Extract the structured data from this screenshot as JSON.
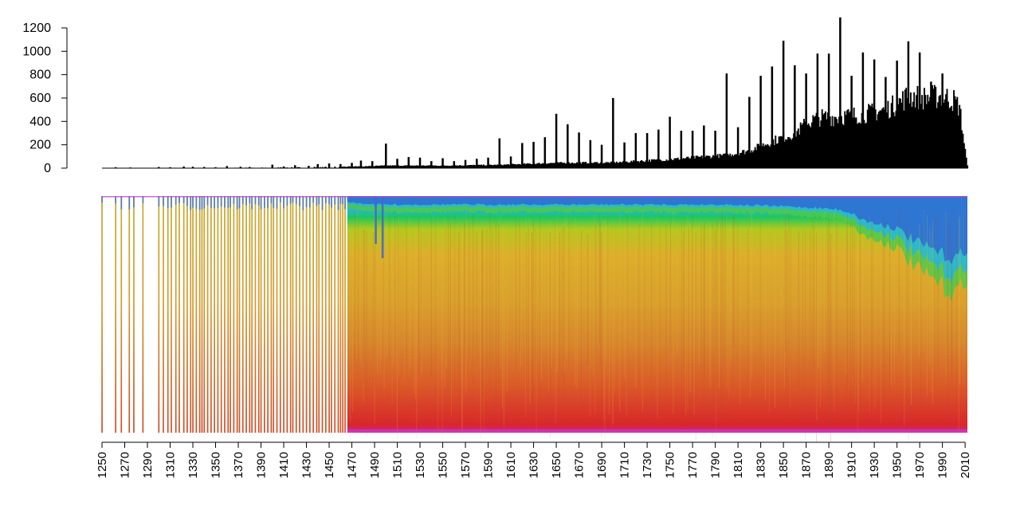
{
  "chart_data": [
    {
      "type": "bar",
      "title": "",
      "xlabel": "",
      "ylabel": "",
      "xlim": [
        1250,
        2012
      ],
      "ylim": [
        0,
        1200
      ],
      "y_ticks": [
        0,
        200,
        400,
        600,
        800,
        1000,
        1200
      ],
      "y_tick_labels": [
        "0",
        "200",
        "400",
        "600",
        "800",
        "1000",
        "1200"
      ],
      "grid": false,
      "bar_color": "#000000",
      "baseline": [
        [
          1250,
          0
        ],
        [
          1300,
          1
        ],
        [
          1400,
          5
        ],
        [
          1450,
          12
        ],
        [
          1480,
          15
        ],
        [
          1500,
          22
        ],
        [
          1550,
          22
        ],
        [
          1600,
          28
        ],
        [
          1650,
          45
        ],
        [
          1700,
          48
        ],
        [
          1750,
          75
        ],
        [
          1800,
          110
        ],
        [
          1820,
          150
        ],
        [
          1840,
          230
        ],
        [
          1860,
          300
        ],
        [
          1870,
          380
        ],
        [
          1880,
          430
        ],
        [
          1900,
          440
        ],
        [
          1920,
          460
        ],
        [
          1940,
          500
        ],
        [
          1950,
          550
        ],
        [
          1960,
          620
        ],
        [
          1975,
          600
        ],
        [
          1990,
          620
        ],
        [
          2000,
          580
        ],
        [
          2005,
          520
        ],
        [
          2008,
          300
        ],
        [
          2010,
          150
        ],
        [
          2012,
          20
        ]
      ],
      "spikes": [
        [
          1262,
          8
        ],
        [
          1275,
          6
        ],
        [
          1300,
          10
        ],
        [
          1310,
          8
        ],
        [
          1322,
          14
        ],
        [
          1330,
          12
        ],
        [
          1340,
          10
        ],
        [
          1350,
          8
        ],
        [
          1360,
          18
        ],
        [
          1372,
          12
        ],
        [
          1380,
          10
        ],
        [
          1400,
          30
        ],
        [
          1410,
          15
        ],
        [
          1420,
          25
        ],
        [
          1432,
          20
        ],
        [
          1440,
          35
        ],
        [
          1450,
          40
        ],
        [
          1460,
          35
        ],
        [
          1470,
          45
        ],
        [
          1478,
          65
        ],
        [
          1488,
          60
        ],
        [
          1500,
          210
        ],
        [
          1510,
          80
        ],
        [
          1520,
          95
        ],
        [
          1530,
          90
        ],
        [
          1540,
          60
        ],
        [
          1550,
          85
        ],
        [
          1560,
          60
        ],
        [
          1570,
          70
        ],
        [
          1580,
          80
        ],
        [
          1590,
          90
        ],
        [
          1600,
          255
        ],
        [
          1610,
          100
        ],
        [
          1620,
          215
        ],
        [
          1630,
          225
        ],
        [
          1640,
          265
        ],
        [
          1650,
          465
        ],
        [
          1660,
          375
        ],
        [
          1670,
          305
        ],
        [
          1680,
          240
        ],
        [
          1690,
          200
        ],
        [
          1700,
          600
        ],
        [
          1710,
          220
        ],
        [
          1720,
          300
        ],
        [
          1730,
          300
        ],
        [
          1740,
          330
        ],
        [
          1750,
          440
        ],
        [
          1760,
          320
        ],
        [
          1770,
          320
        ],
        [
          1780,
          365
        ],
        [
          1790,
          320
        ],
        [
          1800,
          810
        ],
        [
          1810,
          350
        ],
        [
          1820,
          610
        ],
        [
          1830,
          790
        ],
        [
          1840,
          870
        ],
        [
          1850,
          1090
        ],
        [
          1860,
          880
        ],
        [
          1870,
          810
        ],
        [
          1880,
          980
        ],
        [
          1890,
          980
        ],
        [
          1900,
          1290
        ],
        [
          1910,
          790
        ],
        [
          1920,
          990
        ],
        [
          1930,
          930
        ],
        [
          1940,
          780
        ],
        [
          1950,
          920
        ],
        [
          1960,
          1085
        ],
        [
          1970,
          990
        ],
        [
          1980,
          740
        ],
        [
          1990,
          810
        ]
      ]
    },
    {
      "type": "heatmap",
      "title": "",
      "xlim": [
        1250,
        2012
      ],
      "x_ticks": [
        1250,
        1270,
        1290,
        1310,
        1330,
        1350,
        1370,
        1390,
        1410,
        1430,
        1450,
        1470,
        1490,
        1510,
        1530,
        1550,
        1570,
        1590,
        1610,
        1630,
        1650,
        1670,
        1690,
        1710,
        1730,
        1750,
        1770,
        1790,
        1810,
        1830,
        1850,
        1870,
        1890,
        1910,
        1930,
        1950,
        1970,
        1990,
        2010
      ],
      "x_tick_labels": [
        "1250",
        "1270",
        "1290",
        "1310",
        "1330",
        "1350",
        "1370",
        "1390",
        "1410",
        "1430",
        "1450",
        "1470",
        "1490",
        "1510",
        "1530",
        "1550",
        "1570",
        "1590",
        "1610",
        "1630",
        "1650",
        "1670",
        "1690",
        "1710",
        "1730",
        "1750",
        "1770",
        "1790",
        "1810",
        "1830",
        "1850",
        "1870",
        "1890",
        "1910",
        "1930",
        "1950",
        "1970",
        "1990",
        "2010"
      ],
      "x_tick_label_rotation": "vertical",
      "color_stops": [
        "#c026d3",
        "#1e3fd0",
        "#2f7fd4",
        "#27b3e0",
        "#1ec85c",
        "#b4c81e",
        "#dcae2b",
        "#d9a02c",
        "#d7862c",
        "#da5a28",
        "#d8262b",
        "#c026d3"
      ],
      "sparse_before": 1466,
      "sparse_years": [
        1250,
        1262,
        1267,
        1274,
        1278,
        1286,
        1300,
        1304,
        1308,
        1311,
        1315,
        1318,
        1322,
        1325,
        1328,
        1330,
        1333,
        1336,
        1338,
        1340,
        1343,
        1346,
        1349,
        1352,
        1355,
        1358,
        1361,
        1363,
        1366,
        1369,
        1371,
        1374,
        1377,
        1380,
        1382,
        1385,
        1388,
        1390,
        1393,
        1396,
        1399,
        1401,
        1404,
        1407,
        1410,
        1413,
        1416,
        1418,
        1421,
        1424,
        1427,
        1430,
        1433,
        1436,
        1439,
        1441,
        1444,
        1447,
        1450,
        1452,
        1455,
        1458,
        1460,
        1462,
        1464
      ],
      "blue_fraction_profile": [
        [
          1250,
          0.0
        ],
        [
          1460,
          0.02
        ],
        [
          1470,
          0.04
        ],
        [
          1500,
          0.05
        ],
        [
          1600,
          0.05
        ],
        [
          1700,
          0.05
        ],
        [
          1800,
          0.05
        ],
        [
          1850,
          0.06
        ],
        [
          1880,
          0.07
        ],
        [
          1900,
          0.08
        ],
        [
          1910,
          0.1
        ],
        [
          1920,
          0.14
        ],
        [
          1930,
          0.16
        ],
        [
          1940,
          0.17
        ],
        [
          1950,
          0.19
        ],
        [
          1960,
          0.24
        ],
        [
          1970,
          0.28
        ],
        [
          1980,
          0.31
        ],
        [
          1990,
          0.34
        ],
        [
          2000,
          0.37
        ],
        [
          2005,
          0.35
        ],
        [
          2012,
          0.3
        ]
      ]
    }
  ]
}
